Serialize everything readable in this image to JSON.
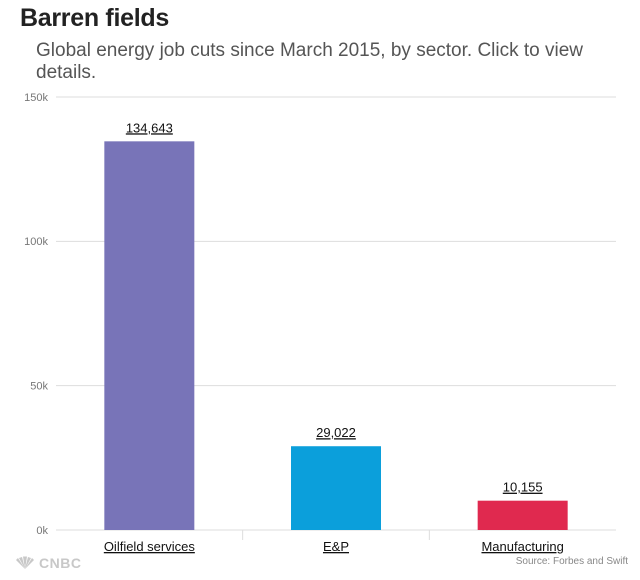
{
  "header": {
    "title": "Barren fields",
    "subtitle": "Global energy job cuts since March 2015, by sector. Click to view details."
  },
  "footer": {
    "source": "Source: Forbes and Swift",
    "logo_text": "CNBC"
  },
  "colors": {
    "oilfield": "#7874b8",
    "ep": "#0b9fdb",
    "manufacturing": "#e0294f",
    "grid": "#dddddd"
  },
  "chart_data": {
    "type": "bar",
    "title": "Barren fields",
    "subtitle": "Global energy job cuts since March 2015, by sector. Click to view details.",
    "categories": [
      "Oilfield services",
      "E&P",
      "Manufacturing"
    ],
    "values": [
      134643,
      29022,
      10155
    ],
    "value_labels": [
      "134,643",
      "29,022",
      "10,155"
    ],
    "bar_colors": [
      "#7874b8",
      "#0b9fdb",
      "#e0294f"
    ],
    "ylim": [
      0,
      150000
    ],
    "yticks": [
      0,
      50000,
      100000,
      150000
    ],
    "ytick_labels": [
      "0k",
      "50k",
      "100k",
      "150k"
    ],
    "xlabel": "",
    "ylabel": "",
    "grid": true
  }
}
